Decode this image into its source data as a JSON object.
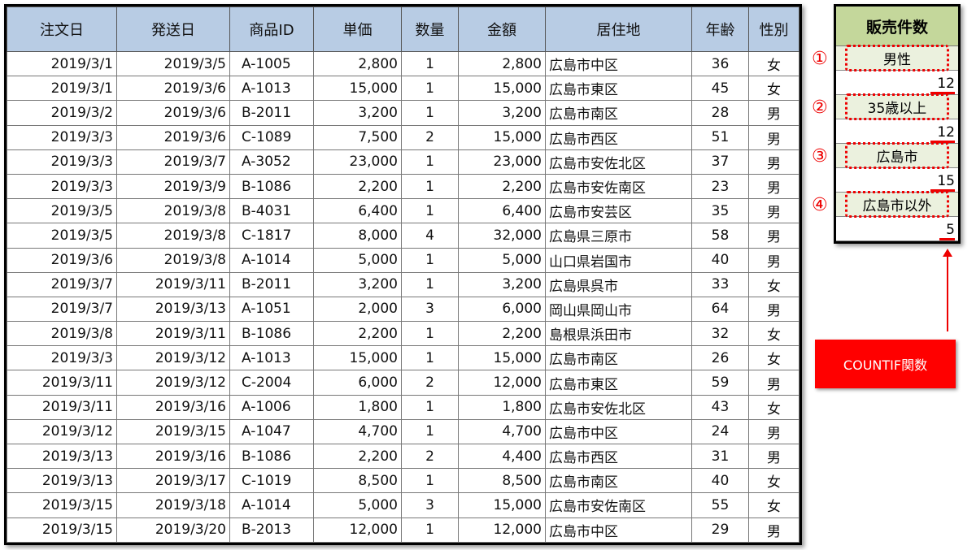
{
  "table": {
    "headers": [
      "注文日",
      "発送日",
      "商品ID",
      "単価",
      "数量",
      "金額",
      "居住地",
      "年齢",
      "性別"
    ],
    "rows": [
      [
        "2019/3/1",
        "2019/3/5",
        "A-1005",
        "2,800",
        "1",
        "2,800",
        "広島市中区",
        "36",
        "女"
      ],
      [
        "2019/3/1",
        "2019/3/6",
        "A-1013",
        "15,000",
        "1",
        "15,000",
        "広島市東区",
        "45",
        "女"
      ],
      [
        "2019/3/2",
        "2019/3/6",
        "B-2011",
        "3,200",
        "1",
        "3,200",
        "広島市南区",
        "28",
        "男"
      ],
      [
        "2019/3/3",
        "2019/3/6",
        "C-1089",
        "7,500",
        "2",
        "15,000",
        "広島市西区",
        "51",
        "男"
      ],
      [
        "2019/3/3",
        "2019/3/7",
        "A-3052",
        "23,000",
        "1",
        "23,000",
        "広島市安佐北区",
        "37",
        "男"
      ],
      [
        "2019/3/3",
        "2019/3/9",
        "B-1086",
        "2,200",
        "1",
        "2,200",
        "広島市安佐南区",
        "23",
        "男"
      ],
      [
        "2019/3/5",
        "2019/3/8",
        "B-4031",
        "6,400",
        "1",
        "6,400",
        "広島市安芸区",
        "35",
        "男"
      ],
      [
        "2019/3/5",
        "2019/3/8",
        "C-1817",
        "8,000",
        "4",
        "32,000",
        "広島県三原市",
        "58",
        "男"
      ],
      [
        "2019/3/6",
        "2019/3/8",
        "A-1014",
        "5,000",
        "1",
        "5,000",
        "山口県岩国市",
        "40",
        "男"
      ],
      [
        "2019/3/7",
        "2019/3/11",
        "B-2011",
        "3,200",
        "1",
        "3,200",
        "広島県呉市",
        "33",
        "女"
      ],
      [
        "2019/3/7",
        "2019/3/13",
        "A-1051",
        "2,000",
        "3",
        "6,000",
        "岡山県岡山市",
        "64",
        "男"
      ],
      [
        "2019/3/8",
        "2019/3/11",
        "B-1086",
        "2,200",
        "1",
        "2,200",
        "島根県浜田市",
        "32",
        "女"
      ],
      [
        "2019/3/3",
        "2019/3/12",
        "A-1013",
        "15,000",
        "1",
        "15,000",
        "広島市南区",
        "26",
        "女"
      ],
      [
        "2019/3/11",
        "2019/3/12",
        "C-2004",
        "6,000",
        "2",
        "12,000",
        "広島市東区",
        "59",
        "男"
      ],
      [
        "2019/3/11",
        "2019/3/16",
        "A-1006",
        "1,800",
        "1",
        "1,800",
        "広島市安佐北区",
        "43",
        "女"
      ],
      [
        "2019/3/12",
        "2019/3/15",
        "A-1047",
        "4,700",
        "1",
        "4,700",
        "広島市中区",
        "24",
        "男"
      ],
      [
        "2019/3/13",
        "2019/3/16",
        "B-1086",
        "2,200",
        "2",
        "4,400",
        "広島市西区",
        "31",
        "男"
      ],
      [
        "2019/3/13",
        "2019/3/17",
        "C-1019",
        "8,500",
        "1",
        "8,500",
        "広島市南区",
        "40",
        "女"
      ],
      [
        "2019/3/15",
        "2019/3/18",
        "A-1014",
        "5,000",
        "3",
        "15,000",
        "広島市安佐南区",
        "55",
        "女"
      ],
      [
        "2019/3/15",
        "2019/3/20",
        "B-2013",
        "12,000",
        "1",
        "12,000",
        "広島市中区",
        "29",
        "男"
      ]
    ]
  },
  "panel": {
    "title": "販売件数",
    "items": [
      {
        "marker": "①",
        "label": "男性",
        "value": "12"
      },
      {
        "marker": "②",
        "label": "35歳以上",
        "value": "12"
      },
      {
        "marker": "③",
        "label": "広島市",
        "value": "15"
      },
      {
        "marker": "④",
        "label": "広島市以外",
        "value": "5"
      }
    ]
  },
  "callout": {
    "label": "COUNTIF関数",
    "color": "#ff0000"
  }
}
